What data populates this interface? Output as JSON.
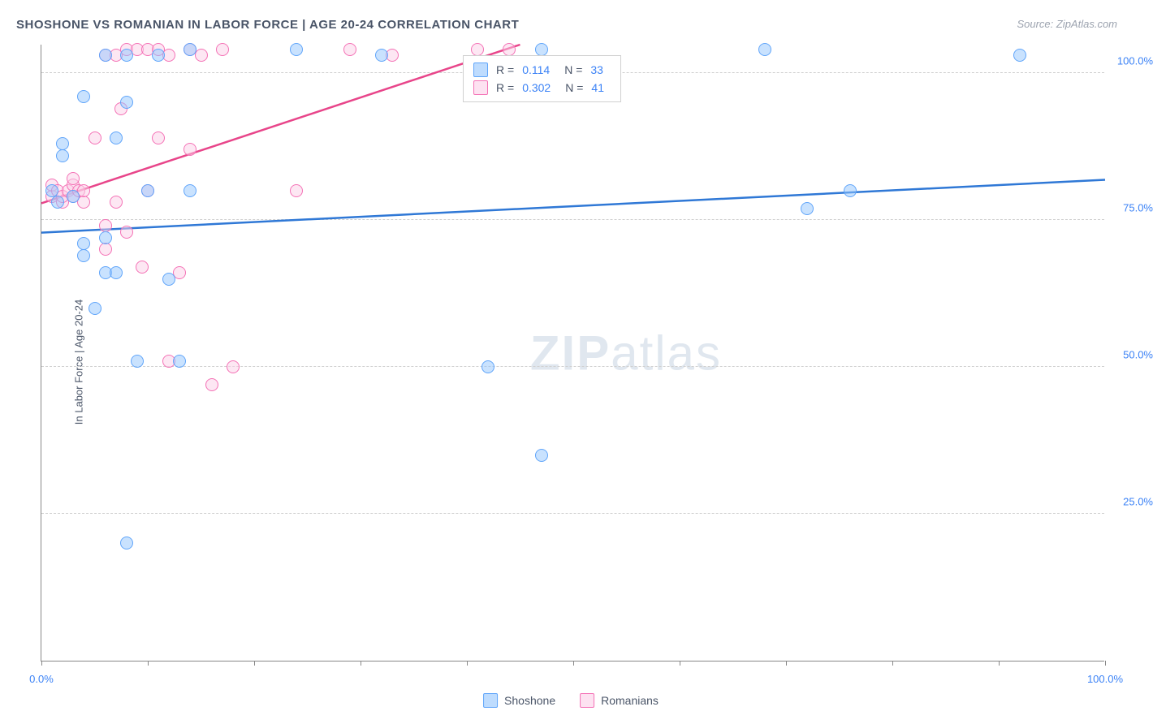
{
  "title": "SHOSHONE VS ROMANIAN IN LABOR FORCE | AGE 20-24 CORRELATION CHART",
  "source": "Source: ZipAtlas.com",
  "ylabel": "In Labor Force | Age 20-24",
  "watermark_a": "ZIP",
  "watermark_b": "atlas",
  "chart": {
    "type": "scatter",
    "xlim": [
      0,
      100
    ],
    "ylim": [
      0,
      105
    ],
    "gridline_color": "#d0d0d0",
    "axis_color": "#888888",
    "background_color": "#ffffff",
    "yticks": [
      25,
      50,
      75,
      100
    ],
    "ytick_labels": [
      "25.0%",
      "50.0%",
      "75.0%",
      "100.0%"
    ],
    "xticks": [
      0,
      10,
      20,
      30,
      40,
      50,
      60,
      70,
      80,
      90,
      100
    ],
    "xtick_labels_shown": {
      "0": "0.0%",
      "100": "100.0%"
    },
    "marker_size": 16
  },
  "series": {
    "shoshone": {
      "label": "Shoshone",
      "fill_color": "rgba(147,197,253,0.5)",
      "stroke_color": "#60a5fa",
      "line_color": "#2f78d6",
      "trend": {
        "x1": 0,
        "y1": 73,
        "x2": 100,
        "y2": 82
      },
      "stats": {
        "R_label": "R =",
        "R": "0.114",
        "N_label": "N =",
        "N": "33"
      },
      "points": [
        [
          1,
          80
        ],
        [
          1.5,
          78
        ],
        [
          2,
          86
        ],
        [
          2,
          88
        ],
        [
          3,
          79
        ],
        [
          4,
          71
        ],
        [
          4,
          96
        ],
        [
          4,
          69
        ],
        [
          6,
          103
        ],
        [
          6,
          72
        ],
        [
          8,
          95
        ],
        [
          8,
          103
        ],
        [
          9,
          51
        ],
        [
          11,
          103
        ],
        [
          6,
          66
        ],
        [
          7,
          66
        ],
        [
          7,
          89
        ],
        [
          10,
          80
        ],
        [
          12,
          65
        ],
        [
          14,
          80
        ],
        [
          5,
          60
        ],
        [
          13,
          51
        ],
        [
          14,
          104
        ],
        [
          8,
          20
        ],
        [
          24,
          104
        ],
        [
          32,
          103
        ],
        [
          47,
          104
        ],
        [
          42,
          50
        ],
        [
          47,
          35
        ],
        [
          68,
          104
        ],
        [
          72,
          77
        ],
        [
          76,
          80
        ],
        [
          92,
          103
        ]
      ]
    },
    "romanians": {
      "label": "Romanians",
      "fill_color": "rgba(251,207,232,0.5)",
      "stroke_color": "#f472b6",
      "line_color": "#e8458a",
      "trend": {
        "x1": 0,
        "y1": 78,
        "x2": 45,
        "y2": 105
      },
      "stats": {
        "R_label": "R =",
        "R": "0.302",
        "N_label": "N =",
        "N": "41"
      },
      "points": [
        [
          1,
          79
        ],
        [
          1,
          81
        ],
        [
          1.5,
          80
        ],
        [
          2,
          78
        ],
        [
          2,
          79
        ],
        [
          2.5,
          80
        ],
        [
          3,
          81
        ],
        [
          3,
          79
        ],
        [
          3.5,
          80
        ],
        [
          4,
          78
        ],
        [
          4,
          80
        ],
        [
          3,
          82
        ],
        [
          5,
          89
        ],
        [
          6,
          70
        ],
        [
          6,
          74
        ],
        [
          6,
          103
        ],
        [
          7,
          78
        ],
        [
          7,
          103
        ],
        [
          7.5,
          94
        ],
        [
          8,
          104
        ],
        [
          8,
          73
        ],
        [
          9,
          104
        ],
        [
          9.5,
          67
        ],
        [
          10,
          104
        ],
        [
          10,
          80
        ],
        [
          11,
          104
        ],
        [
          11,
          89
        ],
        [
          12,
          103
        ],
        [
          12,
          51
        ],
        [
          13,
          66
        ],
        [
          14,
          104
        ],
        [
          14,
          87
        ],
        [
          15,
          103
        ],
        [
          16,
          47
        ],
        [
          17,
          104
        ],
        [
          18,
          50
        ],
        [
          24,
          80
        ],
        [
          29,
          104
        ],
        [
          33,
          103
        ],
        [
          41,
          104
        ],
        [
          44,
          104
        ]
      ]
    }
  },
  "legend": {
    "items": [
      "Shoshone",
      "Romanians"
    ]
  }
}
